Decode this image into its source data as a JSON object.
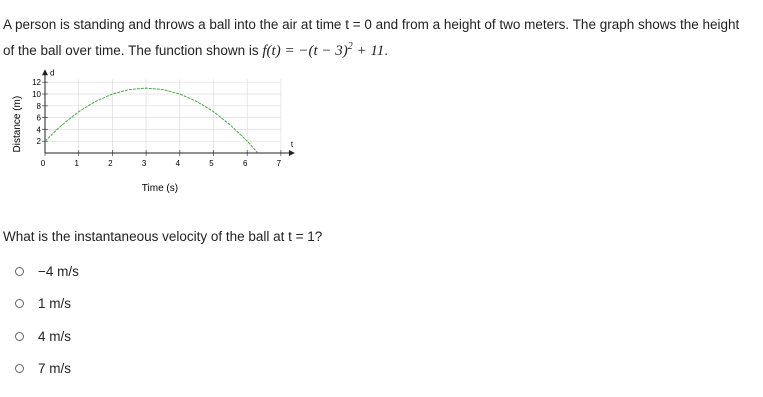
{
  "question": {
    "intro": "A person is standing and throws a ball into the air at time t = 0 and from a height of two meters. The graph shows the height of the ball over time. The function shown is ",
    "formula": {
      "base": "f(t) = −(t − 3)",
      "exponent": "2",
      "rest": " + 11"
    },
    "end": "."
  },
  "chart_data": {
    "type": "line",
    "x_label": "Time (s)",
    "y_label": "Distance (m)",
    "x_axis_letter": "t",
    "y_axis_letter": "d",
    "x": [
      0,
      0.5,
      1,
      1.5,
      2,
      2.5,
      3,
      3.5,
      4,
      4.5,
      5,
      5.5,
      6,
      6.3
    ],
    "series": [
      {
        "color": "#4aa84a",
        "values": [
          2,
          4.75,
          7,
          8.75,
          10,
          10.75,
          11,
          10.75,
          10,
          8.75,
          7,
          4.75,
          2,
          0.11
        ]
      }
    ],
    "xlim": [
      0,
      7
    ],
    "ylim": [
      0,
      12.5
    ],
    "xticks": [
      0,
      1,
      2,
      3,
      4,
      5,
      6,
      7
    ],
    "yticks": [
      2,
      4,
      6,
      8,
      10,
      12
    ],
    "grid": true
  },
  "prompt": "What is the instantaneous velocity of the ball at t = 1?",
  "options": [
    "−4 m/s",
    "1 m/s",
    "4 m/s",
    "7 m/s"
  ]
}
